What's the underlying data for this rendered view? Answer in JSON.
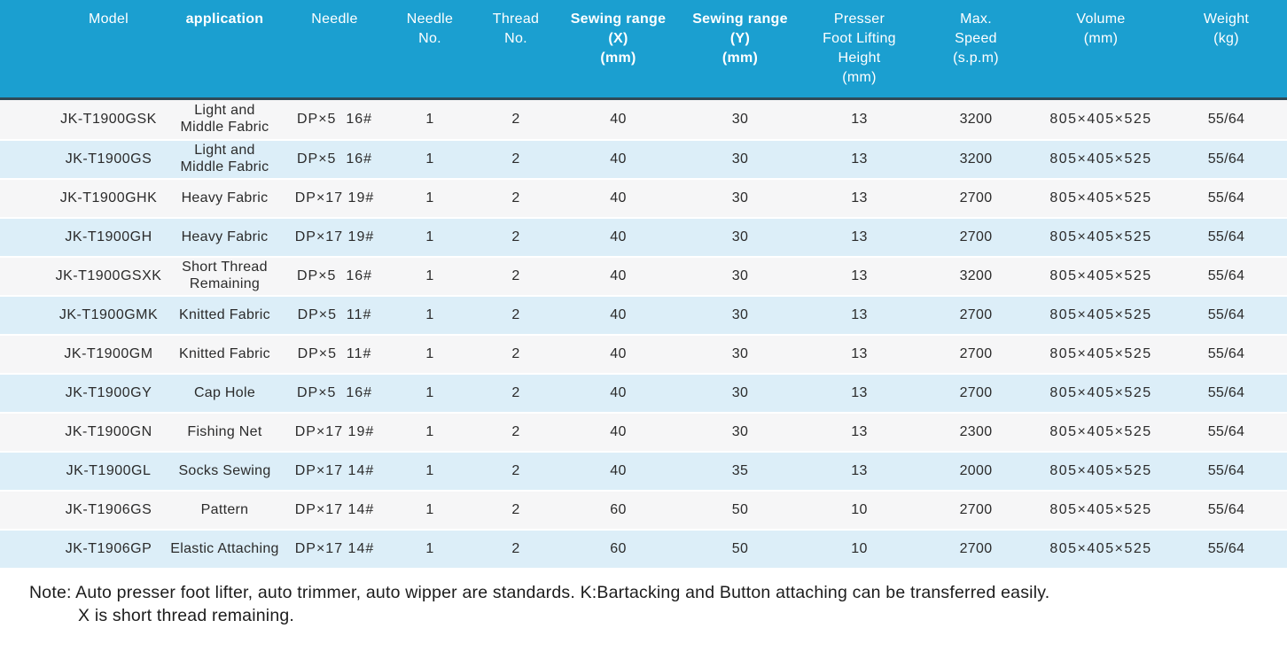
{
  "colors": {
    "header_bg": "#1b9fd0",
    "header_text": "#ffffff",
    "header_underline": "#2f4a57",
    "row_odd_bg": "#f6f6f7",
    "row_even_bg": "#dceef8",
    "cell_text": "#2b2b2b",
    "note_text": "#1c1c1c"
  },
  "table": {
    "columns": [
      {
        "id": "model",
        "label": "Model",
        "bold": false
      },
      {
        "id": "application",
        "label": "application",
        "bold": true
      },
      {
        "id": "needle",
        "label": "Needle",
        "bold": false
      },
      {
        "id": "needle_no",
        "label": "Needle\nNo.",
        "bold": false
      },
      {
        "id": "thread_no",
        "label": "Thread\nNo.",
        "bold": false
      },
      {
        "id": "sewing_x",
        "label": "Sewing range\n(X)\n(mm)",
        "bold": true
      },
      {
        "id": "sewing_y",
        "label": "Sewing range\n(Y)\n(mm)",
        "bold": true
      },
      {
        "id": "presser",
        "label": "Presser\nFoot Lifting\nHeight\n(mm)",
        "bold": false
      },
      {
        "id": "max_speed",
        "label": "Max.\nSpeed\n(s.p.m)",
        "bold": false
      },
      {
        "id": "volume",
        "label": "Volume\n(mm)",
        "bold": false
      },
      {
        "id": "weight",
        "label": "Weight\n(kg)",
        "bold": false
      }
    ],
    "rows": [
      [
        "JK-T1900GSK",
        "Light and\nMiddle Fabric",
        "DP×5  16#",
        "1",
        "2",
        "40",
        "30",
        "13",
        "3200",
        "805×405×525",
        "55/64"
      ],
      [
        "JK-T1900GS",
        "Light and\nMiddle Fabric",
        "DP×5  16#",
        "1",
        "2",
        "40",
        "30",
        "13",
        "3200",
        "805×405×525",
        "55/64"
      ],
      [
        "JK-T1900GHK",
        "Heavy Fabric",
        "DP×17 19#",
        "1",
        "2",
        "40",
        "30",
        "13",
        "2700",
        "805×405×525",
        "55/64"
      ],
      [
        "JK-T1900GH",
        "Heavy Fabric",
        "DP×17 19#",
        "1",
        "2",
        "40",
        "30",
        "13",
        "2700",
        "805×405×525",
        "55/64"
      ],
      [
        "JK-T1900GSXK",
        "Short Thread\nRemaining",
        "DP×5  16#",
        "1",
        "2",
        "40",
        "30",
        "13",
        "3200",
        "805×405×525",
        "55/64"
      ],
      [
        "JK-T1900GMK",
        "Knitted Fabric",
        "DP×5  11#",
        "1",
        "2",
        "40",
        "30",
        "13",
        "2700",
        "805×405×525",
        "55/64"
      ],
      [
        "JK-T1900GM",
        "Knitted Fabric",
        "DP×5  11#",
        "1",
        "2",
        "40",
        "30",
        "13",
        "2700",
        "805×405×525",
        "55/64"
      ],
      [
        "JK-T1900GY",
        "Cap Hole",
        "DP×5  16#",
        "1",
        "2",
        "40",
        "30",
        "13",
        "2700",
        "805×405×525",
        "55/64"
      ],
      [
        "JK-T1900GN",
        "Fishing Net",
        "DP×17 19#",
        "1",
        "2",
        "40",
        "30",
        "13",
        "2300",
        "805×405×525",
        "55/64"
      ],
      [
        "JK-T1900GL",
        "Socks Sewing",
        "DP×17 14#",
        "1",
        "2",
        "40",
        "35",
        "13",
        "2000",
        "805×405×525",
        "55/64"
      ],
      [
        "JK-T1906GS",
        "Pattern",
        "DP×17 14#",
        "1",
        "2",
        "60",
        "50",
        "10",
        "2700",
        "805×405×525",
        "55/64"
      ],
      [
        "JK-T1906GP",
        "Elastic Attaching",
        "DP×17 14#",
        "1",
        "2",
        "60",
        "50",
        "10",
        "2700",
        "805×405×525",
        "55/64"
      ]
    ]
  },
  "note": {
    "line1": "Note: Auto presser foot lifter, auto trimmer, auto wipper are standards. K:Bartacking and Button attaching can be transferred easily.",
    "line2": "X is short thread remaining."
  }
}
